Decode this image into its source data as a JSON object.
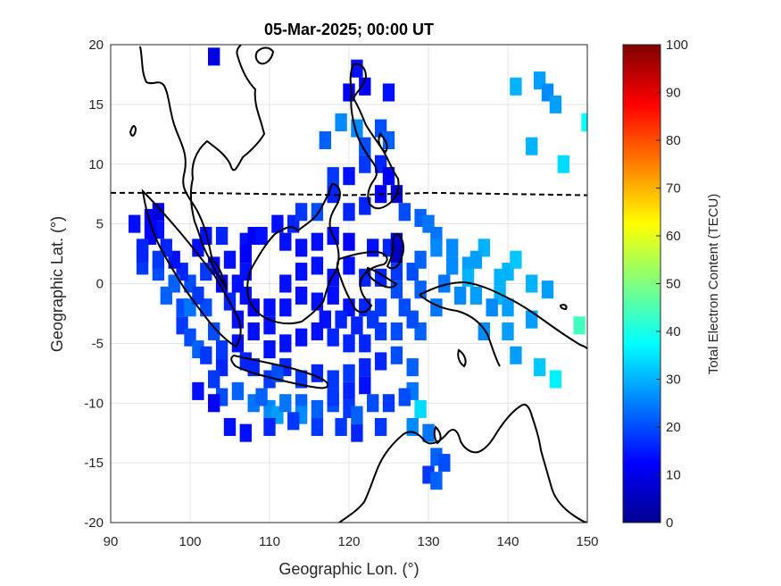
{
  "chart_data": {
    "type": "heatmap",
    "title": "05-Mar-2025; 00:00 UT",
    "xlabel": "Geographic Lon. (°)",
    "ylabel": "Geographic Lat. (°)",
    "xlim": [
      90,
      150
    ],
    "ylim": [
      -20,
      20
    ],
    "xticks": [
      "90",
      "100",
      "110",
      "120",
      "130",
      "140",
      "150"
    ],
    "yticks": [
      "20",
      "15",
      "10",
      "5",
      "0",
      "-5",
      "-10",
      "-15",
      "-20"
    ],
    "grid": true,
    "colorbar": {
      "label": "Total Electron Content (TECU)",
      "range": [
        0,
        100
      ],
      "ticks": [
        "0",
        "10",
        "20",
        "30",
        "40",
        "50",
        "60",
        "70",
        "80",
        "90",
        "100"
      ],
      "colormap": "jet"
    },
    "magnetic_equator": [
      [
        90,
        7.6
      ],
      [
        100,
        7.6
      ],
      [
        110,
        7.5
      ],
      [
        120,
        7.4
      ],
      [
        130,
        7.6
      ],
      [
        140,
        7.5
      ],
      [
        150,
        7.4
      ]
    ],
    "cells": [
      [
        103,
        19,
        10
      ],
      [
        121,
        18,
        14
      ],
      [
        122,
        16.5,
        12
      ],
      [
        120,
        16,
        12
      ],
      [
        125,
        16,
        14
      ],
      [
        141,
        16.5,
        30
      ],
      [
        144,
        17,
        28
      ],
      [
        145,
        16,
        26
      ],
      [
        146,
        15,
        28
      ],
      [
        150,
        13.5,
        38
      ],
      [
        119,
        13.5,
        26
      ],
      [
        121,
        13,
        26
      ],
      [
        124,
        13,
        20
      ],
      [
        117,
        12,
        22
      ],
      [
        122,
        11.5,
        20
      ],
      [
        125,
        12,
        22
      ],
      [
        143,
        11.5,
        30
      ],
      [
        147,
        10,
        34
      ],
      [
        122,
        10,
        18
      ],
      [
        124,
        10,
        16
      ],
      [
        118,
        9,
        18
      ],
      [
        120,
        9,
        14
      ],
      [
        125,
        9,
        12
      ],
      [
        124,
        7.5,
        12
      ],
      [
        126,
        7.5,
        8
      ],
      [
        118,
        7.5,
        16
      ],
      [
        116,
        6,
        20
      ],
      [
        122,
        6.5,
        16
      ],
      [
        127,
        6,
        20
      ],
      [
        129,
        5.5,
        22
      ],
      [
        130,
        5,
        24
      ],
      [
        131,
        4,
        24
      ],
      [
        131,
        3,
        26
      ],
      [
        133,
        3,
        26
      ],
      [
        133,
        1.5,
        26
      ],
      [
        135,
        1.5,
        28
      ],
      [
        135,
        0.5,
        30
      ],
      [
        137,
        3,
        30
      ],
      [
        136,
        2,
        28
      ],
      [
        139,
        0.5,
        30
      ],
      [
        140,
        1,
        30
      ],
      [
        141,
        2,
        32
      ],
      [
        139,
        -1,
        30
      ],
      [
        143,
        0,
        30
      ],
      [
        145,
        -0.5,
        28
      ],
      [
        140,
        -2,
        28
      ],
      [
        138,
        -2,
        26
      ],
      [
        143,
        -3,
        28
      ],
      [
        140,
        -4,
        28
      ],
      [
        137,
        -4,
        26
      ],
      [
        141,
        -6,
        28
      ],
      [
        144,
        -7,
        32
      ],
      [
        146,
        -8,
        36
      ],
      [
        149,
        -3.5,
        44
      ],
      [
        131,
        -2,
        24
      ],
      [
        129,
        -4,
        22
      ],
      [
        126,
        -6,
        20
      ],
      [
        128,
        -7,
        22
      ],
      [
        128,
        -9,
        24
      ],
      [
        129,
        -10.5,
        34
      ],
      [
        128,
        -12,
        26
      ],
      [
        130,
        -12.5,
        24
      ],
      [
        131,
        -14.5,
        22
      ],
      [
        130,
        -16,
        18
      ],
      [
        131,
        -16.5,
        22
      ],
      [
        132,
        -15,
        20
      ],
      [
        107,
        3.5,
        14
      ],
      [
        108,
        4,
        12
      ],
      [
        109,
        4,
        14
      ],
      [
        107,
        2.5,
        12
      ],
      [
        107,
        1,
        14
      ],
      [
        107,
        -1,
        14
      ],
      [
        108,
        -2,
        12
      ],
      [
        106,
        -3,
        14
      ],
      [
        104,
        4,
        16
      ],
      [
        102,
        4,
        14
      ],
      [
        101,
        3,
        14
      ],
      [
        103,
        1.5,
        12
      ],
      [
        104,
        0,
        12
      ],
      [
        102,
        1,
        18
      ],
      [
        100,
        0,
        20
      ],
      [
        99,
        1,
        16
      ],
      [
        98,
        2,
        14
      ],
      [
        97,
        3,
        16
      ],
      [
        96,
        4.5,
        14
      ],
      [
        95,
        5.5,
        12
      ],
      [
        96,
        6,
        10
      ],
      [
        95,
        4,
        12
      ],
      [
        93,
        5,
        14
      ],
      [
        94,
        3,
        16
      ],
      [
        94,
        1.5,
        18
      ],
      [
        96,
        1,
        20
      ],
      [
        97,
        -1,
        22
      ],
      [
        99,
        -2,
        20
      ],
      [
        99,
        -3.5,
        18
      ],
      [
        100,
        -4.5,
        20
      ],
      [
        101,
        -5.5,
        22
      ],
      [
        102,
        -6,
        18
      ],
      [
        104,
        -7,
        16
      ],
      [
        103,
        -8,
        18
      ],
      [
        101,
        -9,
        14
      ],
      [
        104,
        -9.5,
        20
      ],
      [
        106,
        -9,
        22
      ],
      [
        108,
        -10,
        24
      ],
      [
        110,
        -10.5,
        26
      ],
      [
        111,
        -11,
        28
      ],
      [
        112,
        -10,
        24
      ],
      [
        114,
        -10,
        22
      ],
      [
        114,
        -11,
        26
      ],
      [
        116,
        -10.5,
        22
      ],
      [
        118,
        -10,
        20
      ],
      [
        120,
        -10.5,
        18
      ],
      [
        121,
        -11,
        22
      ],
      [
        123,
        -10,
        20
      ],
      [
        125,
        -10,
        18
      ],
      [
        127,
        -9.5,
        20
      ],
      [
        124,
        -12,
        18
      ],
      [
        121,
        -12.5,
        16
      ],
      [
        119,
        -12,
        18
      ],
      [
        116,
        -12,
        18
      ],
      [
        113,
        -11.5,
        18
      ],
      [
        110,
        -12,
        16
      ],
      [
        107,
        -12.5,
        14
      ],
      [
        105,
        -12,
        14
      ],
      [
        103,
        -10,
        12
      ],
      [
        108,
        -7,
        16
      ],
      [
        110,
        -8,
        18
      ],
      [
        112,
        -7,
        16
      ],
      [
        114,
        -8,
        18
      ],
      [
        116,
        -7.5,
        16
      ],
      [
        118,
        -8,
        18
      ],
      [
        120,
        -7.5,
        18
      ],
      [
        122,
        -7,
        16
      ],
      [
        124,
        -6.5,
        16
      ],
      [
        110,
        -5.5,
        14
      ],
      [
        112,
        -5,
        14
      ],
      [
        114,
        -4.5,
        14
      ],
      [
        116,
        -4,
        14
      ],
      [
        118,
        -4.5,
        16
      ],
      [
        120,
        -5,
        16
      ],
      [
        122,
        -5,
        16
      ],
      [
        124,
        -4,
        18
      ],
      [
        126,
        -4,
        20
      ],
      [
        124,
        -2,
        18
      ],
      [
        122,
        -2,
        16
      ],
      [
        120,
        -2,
        14
      ],
      [
        118,
        -1,
        14
      ],
      [
        116,
        -1.5,
        14
      ],
      [
        114,
        -1,
        14
      ],
      [
        112,
        -2,
        14
      ],
      [
        110,
        -2,
        14
      ],
      [
        112,
        0,
        14
      ],
      [
        114,
        1,
        14
      ],
      [
        116,
        1.5,
        14
      ],
      [
        118,
        0.5,
        14
      ],
      [
        120,
        1.5,
        14
      ],
      [
        122,
        0.5,
        16
      ],
      [
        124,
        0.5,
        16
      ],
      [
        126,
        1,
        18
      ],
      [
        128,
        1,
        20
      ],
      [
        125,
        3,
        16
      ],
      [
        123,
        3,
        14
      ],
      [
        120,
        3.5,
        12
      ],
      [
        118,
        4,
        14
      ],
      [
        116,
        3.5,
        14
      ],
      [
        114,
        3,
        14
      ],
      [
        112,
        3.5,
        14
      ],
      [
        111,
        5,
        14
      ],
      [
        113,
        5,
        16
      ],
      [
        126,
        3.5,
        8
      ],
      [
        126,
        2.5,
        6
      ],
      [
        105,
        2,
        14
      ],
      [
        106,
        0,
        14
      ],
      [
        117,
        -3,
        14
      ],
      [
        119,
        -3,
        16
      ],
      [
        121,
        -3.5,
        16
      ],
      [
        123,
        -3,
        18
      ],
      [
        127,
        -2,
        20
      ],
      [
        126,
        -0.5,
        20
      ],
      [
        129,
        -0.5,
        22
      ],
      [
        129,
        2,
        22
      ],
      [
        132,
        0,
        24
      ],
      [
        134,
        -1,
        26
      ],
      [
        136,
        -1,
        28
      ],
      [
        128,
        -3,
        20
      ],
      [
        122,
        -8.5,
        14
      ],
      [
        120,
        -9,
        16
      ],
      [
        118,
        -9.5,
        18
      ],
      [
        109,
        -9.5,
        22
      ],
      [
        103,
        -4,
        20
      ],
      [
        104,
        -5.5,
        18
      ],
      [
        100,
        -2,
        24
      ],
      [
        98,
        0,
        22
      ],
      [
        96,
        2,
        18
      ],
      [
        94,
        2.5,
        16
      ],
      [
        105,
        -1.5,
        16
      ],
      [
        102,
        -2,
        20
      ],
      [
        101,
        -1,
        18
      ],
      [
        120,
        6,
        16
      ],
      [
        114,
        6,
        18
      ],
      [
        110,
        -3.5,
        14
      ],
      [
        108,
        -4,
        14
      ],
      [
        106,
        -5,
        14
      ],
      [
        107,
        -6.5,
        16
      ],
      [
        111,
        -7.5,
        20
      ]
    ]
  }
}
